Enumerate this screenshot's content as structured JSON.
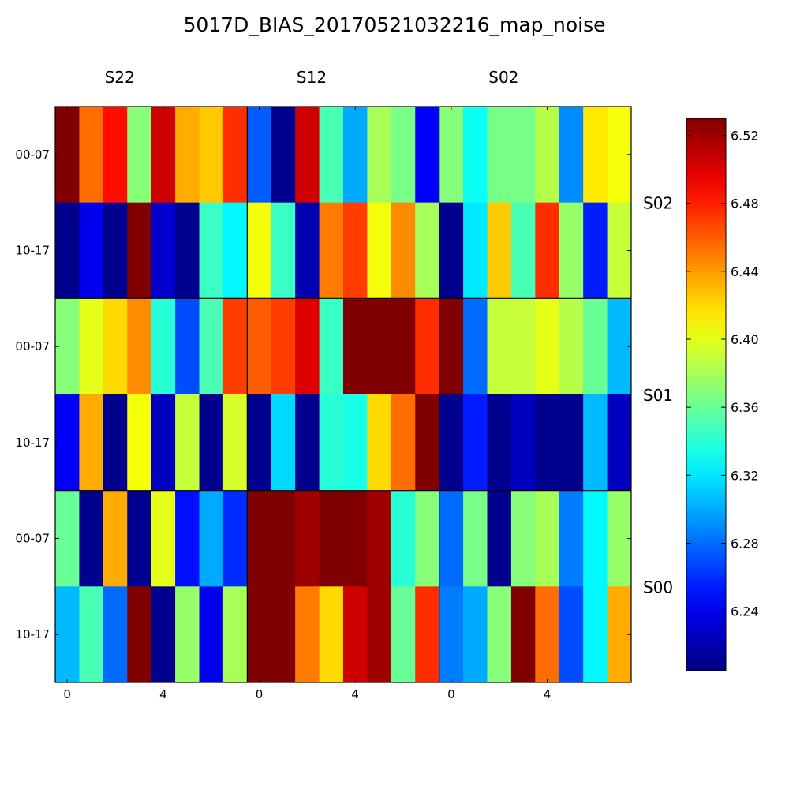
{
  "chart_data": {
    "type": "heatmap",
    "title": "5017D_BIAS_20170521032216_map_noise",
    "column_group_labels": [
      "S22",
      "S12",
      "S02"
    ],
    "row_group_labels": [
      "S02",
      "S01",
      "S00"
    ],
    "row_tick_labels": [
      "00-07",
      "10-17",
      "00-07",
      "10-17",
      "00-07",
      "10-17"
    ],
    "x_tick_labels": [
      "0",
      "4",
      "0",
      "4",
      "0",
      "4"
    ],
    "colorbar": {
      "min": 6.205,
      "max": 6.53,
      "ticks": [
        6.24,
        6.28,
        6.32,
        6.36,
        6.4,
        6.44,
        6.48,
        6.52
      ],
      "tick_labels": [
        "6.24",
        "6.28",
        "6.32",
        "6.36",
        "6.40",
        "6.44",
        "6.48",
        "6.52"
      ]
    },
    "values": [
      [
        6.53,
        6.455,
        6.485,
        6.37,
        6.505,
        6.435,
        6.425,
        6.475,
        6.275,
        6.21,
        6.505,
        6.35,
        6.3,
        6.38,
        6.365,
        6.245,
        6.37,
        6.33,
        6.365,
        6.365,
        6.385,
        6.29,
        6.415,
        6.405
      ],
      [
        6.21,
        6.24,
        6.21,
        6.53,
        6.23,
        6.21,
        6.345,
        6.325,
        6.405,
        6.345,
        6.22,
        6.45,
        6.47,
        6.405,
        6.445,
        6.38,
        6.21,
        6.32,
        6.425,
        6.35,
        6.475,
        6.375,
        6.255,
        6.39
      ],
      [
        6.37,
        6.4,
        6.42,
        6.445,
        6.34,
        6.27,
        6.35,
        6.47,
        6.46,
        6.47,
        6.5,
        6.345,
        6.53,
        6.53,
        6.53,
        6.475,
        6.53,
        6.28,
        6.39,
        6.39,
        6.4,
        6.385,
        6.36,
        6.305
      ],
      [
        6.245,
        6.435,
        6.21,
        6.405,
        6.225,
        6.39,
        6.21,
        6.395,
        6.21,
        6.315,
        6.21,
        6.34,
        6.335,
        6.42,
        6.455,
        6.53,
        6.21,
        6.255,
        6.21,
        6.225,
        6.21,
        6.21,
        6.305,
        6.225
      ],
      [
        6.36,
        6.21,
        6.435,
        6.21,
        6.4,
        6.25,
        6.3,
        6.26,
        6.53,
        6.53,
        6.52,
        6.53,
        6.53,
        6.52,
        6.34,
        6.37,
        6.28,
        6.365,
        6.21,
        6.37,
        6.38,
        6.285,
        6.325,
        6.375
      ],
      [
        6.305,
        6.35,
        6.28,
        6.53,
        6.21,
        6.375,
        6.24,
        6.38,
        6.53,
        6.53,
        6.45,
        6.42,
        6.505,
        6.52,
        6.36,
        6.475,
        6.285,
        6.3,
        6.37,
        6.53,
        6.455,
        6.27,
        6.325,
        6.435
      ]
    ]
  }
}
